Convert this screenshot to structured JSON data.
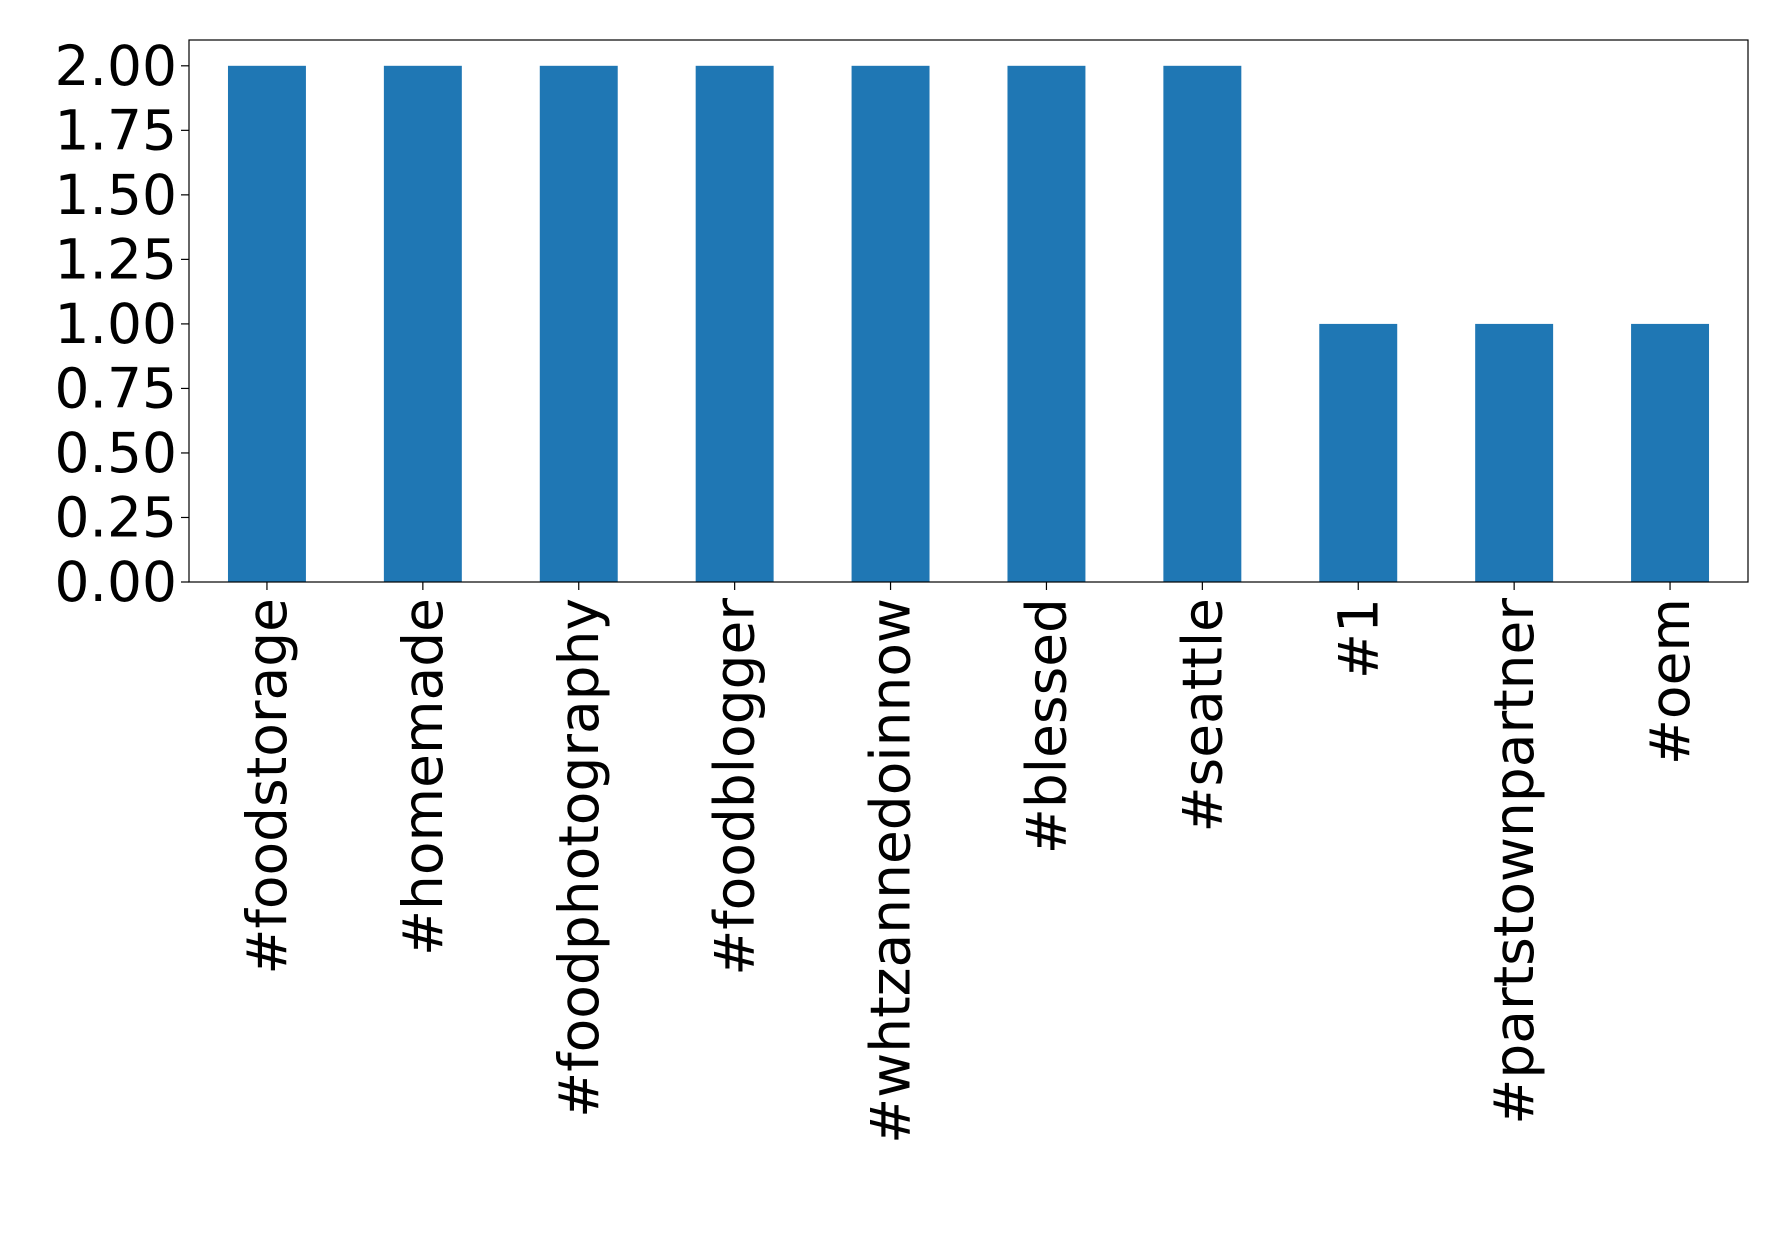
{
  "chart_data": {
    "type": "bar",
    "title": "",
    "xlabel": "",
    "ylabel": "",
    "categories": [
      "#foodstorage",
      "#homemade",
      "#foodphotography",
      "#foodblogger",
      "#whtzannedoinnow",
      "#blessed",
      "#seattle",
      "#1",
      "#partstownpartner",
      "#oem"
    ],
    "values": [
      2,
      2,
      2,
      2,
      2,
      2,
      2,
      1,
      1,
      1
    ],
    "ylim": [
      0,
      2.1
    ],
    "yticks": [
      "0.00",
      "0.25",
      "0.50",
      "0.75",
      "1.00",
      "1.25",
      "1.50",
      "1.75",
      "2.00"
    ],
    "bar_color": "#1f77b4",
    "grid": false,
    "legend": "none"
  }
}
